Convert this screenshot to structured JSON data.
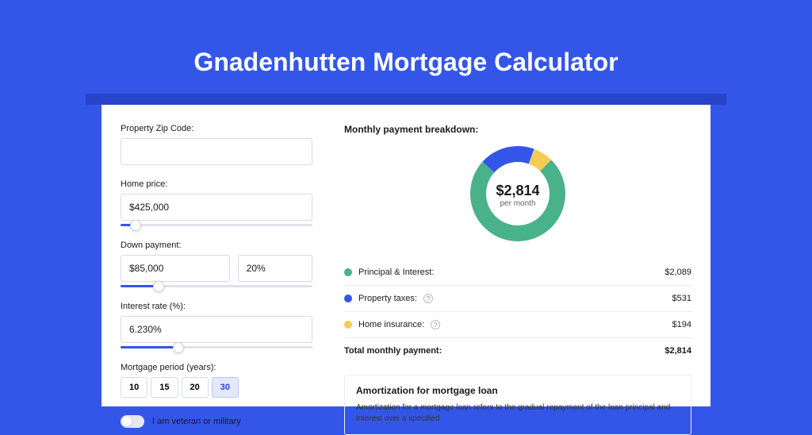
{
  "title": "Gnadenhutten Mortgage Calculator",
  "colors": {
    "page_bg": "#3356e8",
    "band_bg": "#2844c6",
    "panel_bg": "#ffffff",
    "input_border": "#d8dbe4",
    "slider_track": "#dfe2eb",
    "slider_fill": "#3356e8",
    "line_border": "#eceef4",
    "swatch_principal": "#49b28a",
    "swatch_taxes": "#3356e8",
    "swatch_insurance": "#f2cc56"
  },
  "form": {
    "zip": {
      "label": "Property Zip Code:",
      "value": ""
    },
    "price": {
      "label": "Home price:",
      "value": "$425,000",
      "slider_pct": 8
    },
    "down": {
      "label": "Down payment:",
      "amount": "$85,000",
      "pct": "20%",
      "slider_pct": 20
    },
    "rate": {
      "label": "Interest rate (%):",
      "value": "6.230%",
      "slider_pct": 30
    },
    "period": {
      "label": "Mortgage period (years):",
      "options": [
        "10",
        "15",
        "20",
        "30"
      ],
      "selected_index": 3
    },
    "veteran": {
      "label": "I am veteran or military",
      "on": false
    }
  },
  "breakdown": {
    "title": "Monthly payment breakdown:",
    "center_amount": "$2,814",
    "center_label": "per month",
    "donut": {
      "size": 120,
      "thickness": 20,
      "segments": [
        {
          "name": "insurance",
          "value": 194,
          "color": "#f2cc56"
        },
        {
          "name": "principal",
          "value": 2089,
          "color": "#49b28a"
        },
        {
          "name": "taxes",
          "value": 531,
          "color": "#3356e8"
        }
      ],
      "start_angle_deg": -70
    },
    "items": [
      {
        "swatch": "#49b28a",
        "label": "Principal & Interest:",
        "amount": "$2,089",
        "info": false
      },
      {
        "swatch": "#3356e8",
        "label": "Property taxes:",
        "amount": "$531",
        "info": true
      },
      {
        "swatch": "#f2cc56",
        "label": "Home insurance:",
        "amount": "$194",
        "info": true
      }
    ],
    "total_label": "Total monthly payment:",
    "total_amount": "$2,814"
  },
  "amortization": {
    "title": "Amortization for mortgage loan",
    "body": "Amortization for a mortgage loan refers to the gradual repayment of the loan principal and interest over a specified"
  }
}
